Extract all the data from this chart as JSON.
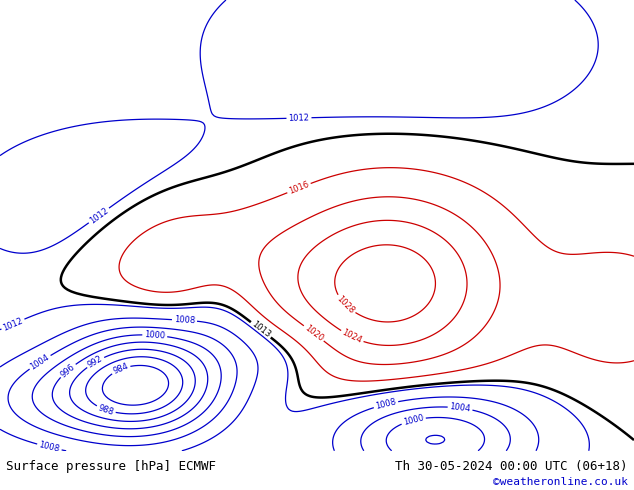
{
  "title_left": "Surface pressure [hPa] ECMWF",
  "title_right": "Th 30-05-2024 00:00 UTC (06+18)",
  "credit": "©weatheronline.co.uk",
  "ocean_color": "#d8d8d8",
  "land_color": "#a8e060",
  "contour_blue_color": "#0000cc",
  "contour_black_color": "#000000",
  "contour_red_color": "#cc0000",
  "bottom_bar_color": "#e0e0e0",
  "bottom_text_color": "#000000",
  "credit_color": "#0000cc",
  "font_size_bottom": 9,
  "fig_width": 6.34,
  "fig_height": 4.9,
  "dpi": 100,
  "lon_min": 90,
  "lon_max": 185,
  "lat_min": -58,
  "lat_max": 12
}
